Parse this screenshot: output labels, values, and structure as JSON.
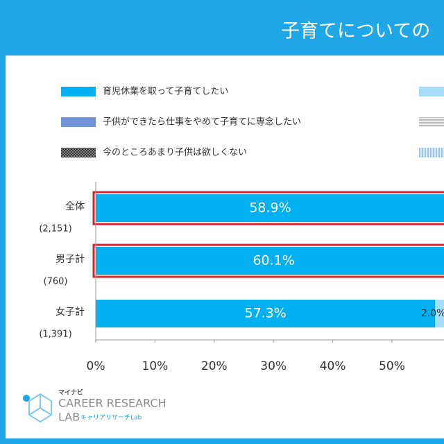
{
  "chart_data": {
    "type": "stacked_barh",
    "title": "子育てについての",
    "categories": [
      "全体",
      "男子計",
      "女子計"
    ],
    "counts": [
      "(2,151)",
      "(760)",
      "(1,391)"
    ],
    "series": [
      {
        "name": "育児休業を取って子育てしたい",
        "color": "#00b0f0",
        "values": [
          58.9,
          60.1,
          57.3
        ],
        "value_labels": [
          "58.9%",
          "60.1%",
          "57.3%"
        ]
      },
      {
        "name": "子供ができたら仕事をやめて子育てに専念したい",
        "color": "#6f93d8",
        "values": [
          null,
          null,
          null
        ]
      },
      {
        "name": "今のところあまり子供は欲しくない",
        "color": "#555555",
        "values": [
          null,
          null,
          null
        ]
      },
      {
        "name": null,
        "color": "#a6def7",
        "values": [
          null,
          null,
          2.0
        ],
        "value_labels": [
          null,
          null,
          "2.0%"
        ]
      },
      {
        "name": null,
        "color": "#c8c8c8",
        "values": [
          null,
          null,
          null
        ]
      },
      {
        "name": null,
        "color": "#b7d4ee",
        "values": [
          null,
          null,
          null
        ]
      }
    ],
    "highlight": [
      "全体",
      "男子計"
    ],
    "xlim": [
      0,
      100
    ],
    "xticks": [
      {
        "value": 0,
        "label": "0%"
      },
      {
        "value": 10,
        "label": "10%"
      },
      {
        "value": 20,
        "label": "20%"
      },
      {
        "value": 30,
        "label": "30%"
      },
      {
        "value": 40,
        "label": "40%"
      },
      {
        "value": 50,
        "label": "50%"
      }
    ]
  },
  "logo": {
    "brand": "マイナビ",
    "line1": "CAREER RESEARCH",
    "line2": "LAB",
    "sub": "キャリアリサーチLab"
  }
}
